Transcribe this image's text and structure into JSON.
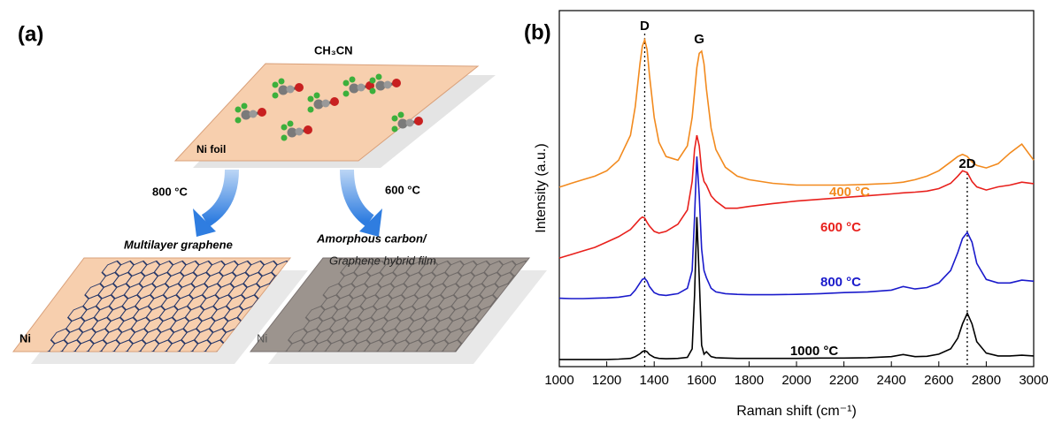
{
  "diagram": {
    "panel_label": "(a)",
    "top_plate": {
      "molecule": "CH₃CN",
      "substrate": "Ni foil"
    },
    "arrows": [
      {
        "label": "800 °C"
      },
      {
        "label": "600 °C"
      }
    ],
    "products": [
      {
        "title": [
          "Multilayer graphene"
        ],
        "substrate": "Ni"
      },
      {
        "title": [
          "Amorphous carbon/",
          "Graphene hybrid film"
        ],
        "substrate": "Ni"
      }
    ]
  },
  "chart_data": {
    "type": "line",
    "panel_label": "(b)",
    "x_label": "Raman shift (cm⁻¹)",
    "y_label": "Intensity (a.u.)",
    "x": [
      1000,
      1050,
      1100,
      1150,
      1200,
      1250,
      1300,
      1320,
      1340,
      1350,
      1360,
      1370,
      1380,
      1400,
      1420,
      1450,
      1500,
      1540,
      1560,
      1570,
      1580,
      1590,
      1600,
      1610,
      1620,
      1640,
      1660,
      1700,
      1750,
      1800,
      1900,
      2000,
      2100,
      2200,
      2300,
      2400,
      2450,
      2500,
      2550,
      2600,
      2650,
      2680,
      2700,
      2720,
      2740,
      2760,
      2800,
      2850,
      2900,
      2950,
      3000
    ],
    "series": [
      {
        "name": "400 °C",
        "color": "#f28a1e",
        "values": [
          50.4,
          51.5,
          52.5,
          53.5,
          55,
          58,
          65,
          73,
          85,
          90,
          91.8,
          89,
          82,
          70,
          63,
          59,
          58,
          62,
          70,
          77,
          84,
          88,
          88.6,
          85,
          78,
          67,
          61,
          56,
          53.5,
          52.5,
          51.5,
          51,
          51,
          51,
          51.2,
          51.5,
          51.8,
          52.5,
          53.5,
          55,
          57.5,
          59,
          59.6,
          59,
          57.5,
          56.5,
          55.8,
          57,
          60,
          62.5,
          58
        ]
      },
      {
        "name": "600 °C",
        "color": "#e8201c",
        "values": [
          30.5,
          31.5,
          32.5,
          33.5,
          35,
          36.5,
          38.5,
          40,
          41.5,
          42,
          41.7,
          40.5,
          39.5,
          38,
          37.5,
          38,
          40,
          44,
          52,
          61,
          65,
          62,
          55,
          52,
          51,
          48,
          46.5,
          44.5,
          44.5,
          45,
          45.8,
          46.5,
          47,
          47.5,
          48,
          48.5,
          48.8,
          49,
          49.3,
          50,
          51.5,
          53.5,
          55,
          54.5,
          52,
          50.5,
          49.6,
          50.5,
          51,
          51.8,
          51.4
        ]
      },
      {
        "name": "800 °C",
        "color": "#1a1acb",
        "values": [
          19.2,
          19.1,
          19.1,
          19.2,
          19.3,
          19.5,
          20,
          21.5,
          23.5,
          24.5,
          24.8,
          24,
          22.5,
          20.8,
          20.2,
          20,
          20.5,
          22,
          27,
          42,
          59,
          48,
          33,
          27,
          25,
          22,
          21,
          20.5,
          20.3,
          20.2,
          20.2,
          20.3,
          20.5,
          20.8,
          21,
          21.5,
          22.5,
          21.8,
          22.2,
          23.5,
          27,
          32,
          36,
          37.7,
          35,
          29,
          24.5,
          23.5,
          23.5,
          24.3,
          24
        ]
      },
      {
        "name": "1000 °C",
        "color": "#000000",
        "values": [
          2,
          2,
          2,
          2,
          2,
          2.1,
          2.3,
          2.8,
          3.6,
          4.2,
          4.5,
          4.2,
          3.4,
          2.6,
          2.3,
          2.2,
          2.3,
          2.6,
          5,
          20,
          42,
          25,
          6,
          3.5,
          4.2,
          2.8,
          2.5,
          2.4,
          2.3,
          2.3,
          2.3,
          2.3,
          2.4,
          2.4,
          2.5,
          2.8,
          3.4,
          2.8,
          2.9,
          3.5,
          5,
          8,
          12,
          15,
          12,
          7,
          3.8,
          3,
          3,
          3.2,
          3
        ]
      }
    ],
    "peak_labels": [
      {
        "label": "D",
        "x": 1360
      },
      {
        "label": "G",
        "x": 1590
      },
      {
        "label": "2D",
        "x": 2720
      }
    ],
    "reference_lines": [
      1360,
      2720
    ],
    "xlim": [
      1000,
      3000
    ],
    "xticks": [
      1000,
      1200,
      1400,
      1600,
      1800,
      2000,
      2200,
      2400,
      2600,
      2800,
      3000
    ],
    "ylim": [
      0,
      100
    ],
    "grid": false
  }
}
